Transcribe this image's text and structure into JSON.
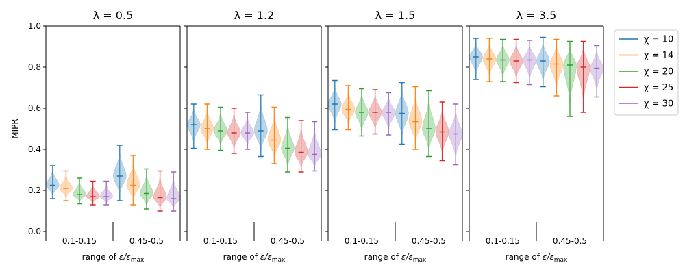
{
  "chart_data": {
    "type": "violin",
    "ylabel": "MIPR",
    "ylim": [
      0.0,
      1.0
    ],
    "yticks": [
      "0.0",
      "0.2",
      "0.4",
      "0.6",
      "0.8",
      "1.0"
    ],
    "xlabel": "range of ε/ε_max",
    "categories": [
      "0.1-0.15",
      "0.45-0.5"
    ],
    "legend_position": "right",
    "series": [
      {
        "name": "χ = 10",
        "color": "#1f77b4"
      },
      {
        "name": "χ = 14",
        "color": "#ff7f0e"
      },
      {
        "name": "χ = 20",
        "color": "#2ca02c"
      },
      {
        "name": "χ = 25",
        "color": "#d62728"
      },
      {
        "name": "χ = 30",
        "color": "#9467bd"
      }
    ],
    "panels": [
      {
        "title": "λ = 0.5",
        "groups": [
          {
            "min": [
              0.16,
              0.15,
              0.135,
              0.13,
              0.13
            ],
            "median": [
              0.225,
              0.21,
              0.18,
              0.17,
              0.17
            ],
            "max": [
              0.32,
              0.295,
              0.26,
              0.245,
              0.245
            ]
          },
          {
            "min": [
              0.15,
              0.13,
              0.11,
              0.1,
              0.1
            ],
            "median": [
              0.27,
              0.225,
              0.185,
              0.165,
              0.16
            ],
            "max": [
              0.42,
              0.37,
              0.305,
              0.295,
              0.29
            ]
          }
        ]
      },
      {
        "title": "λ = 1.2",
        "groups": [
          {
            "min": [
              0.405,
              0.4,
              0.395,
              0.38,
              0.4
            ],
            "median": [
              0.52,
              0.5,
              0.49,
              0.48,
              0.48
            ],
            "max": [
              0.62,
              0.62,
              0.605,
              0.6,
              0.58
            ]
          },
          {
            "min": [
              0.365,
              0.33,
              0.29,
              0.29,
              0.295
            ],
            "median": [
              0.49,
              0.445,
              0.405,
              0.385,
              0.375
            ],
            "max": [
              0.665,
              0.605,
              0.555,
              0.54,
              0.535
            ]
          }
        ]
      },
      {
        "title": "λ = 1.5",
        "groups": [
          {
            "min": [
              0.495,
              0.495,
              0.465,
              0.475,
              0.47
            ],
            "median": [
              0.62,
              0.595,
              0.58,
              0.58,
              0.58
            ],
            "max": [
              0.735,
              0.71,
              0.695,
              0.69,
              0.675
            ]
          },
          {
            "min": [
              0.425,
              0.4,
              0.365,
              0.345,
              0.325
            ],
            "median": [
              0.575,
              0.535,
              0.5,
              0.485,
              0.475
            ],
            "max": [
              0.725,
              0.705,
              0.685,
              0.63,
              0.62
            ]
          }
        ]
      },
      {
        "title": "λ = 3.5",
        "groups": [
          {
            "min": [
              0.74,
              0.73,
              0.73,
              0.725,
              0.715
            ],
            "median": [
              0.85,
              0.84,
              0.835,
              0.83,
              0.835
            ],
            "max": [
              0.94,
              0.94,
              0.935,
              0.935,
              0.93
            ]
          },
          {
            "min": [
              0.705,
              0.66,
              0.56,
              0.58,
              0.655
            ],
            "median": [
              0.83,
              0.815,
              0.81,
              0.8,
              0.795
            ],
            "max": [
              0.945,
              0.935,
              0.925,
              0.925,
              0.905
            ]
          }
        ]
      }
    ]
  }
}
